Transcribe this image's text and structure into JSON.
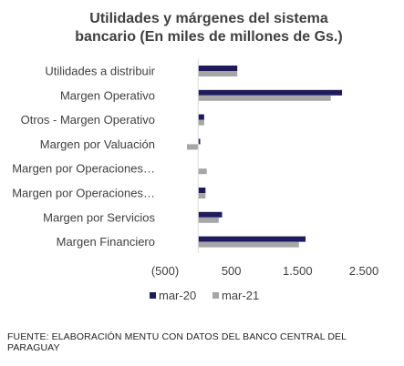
{
  "chart_data": {
    "type": "bar",
    "orientation": "horizontal",
    "title_lines": [
      "Utilidades  y márgenes  del sistema",
      "bancario  (En miles  de millones  de Gs.)"
    ],
    "categories": [
      "Utilidades a distribuir",
      "Margen Operativo",
      "Otros - Margen Operativo",
      "Margen por Valuación",
      "Margen por Operaciones…",
      "Margen por Operaciones…",
      "Margen por Servicios",
      "Margen Financiero"
    ],
    "series": [
      {
        "name": "mar-20",
        "color": "#1f1a5e",
        "values": [
          590,
          2170,
          90,
          30,
          0,
          110,
          360,
          1620
        ]
      },
      {
        "name": "mar-21",
        "color": "#a6a6a6",
        "values": [
          590,
          2000,
          90,
          -170,
          130,
          110,
          310,
          1520
        ]
      }
    ],
    "xlim": [
      -500,
      2500
    ],
    "ticks": [
      "(500)",
      "500",
      "1.500",
      "2.500"
    ],
    "tick_values": [
      -500,
      500,
      1500,
      2500
    ],
    "legend_position": "bottom",
    "grid": false
  },
  "source_note": "FUENTE: ELABORACIÓN MENTU CON DATOS DEL BANCO CENTRAL DEL PARAGUAY"
}
